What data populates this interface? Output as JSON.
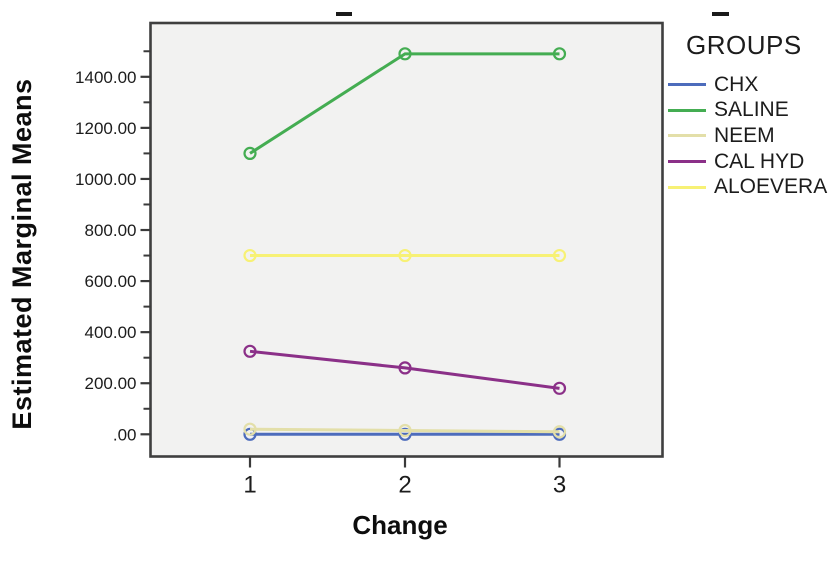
{
  "chart_data": {
    "type": "line",
    "title": "",
    "xlabel": "Change",
    "ylabel": "Estimated Marginal Means",
    "legend_title": "GROUPS",
    "legend_position": "right",
    "grid": false,
    "x": [
      1,
      2,
      3
    ],
    "x_tick_labels": [
      "1",
      "2",
      "3"
    ],
    "y_ticks": [
      ".00",
      "200.00",
      "400.00",
      "600.00",
      "800.00",
      "1000.00",
      "1200.00",
      "1400.00"
    ],
    "y_tick_values": [
      0,
      200,
      400,
      600,
      800,
      1000,
      1200,
      1400
    ],
    "y_minor_tick_values": [
      100,
      300,
      500,
      700,
      900,
      1100,
      1300,
      1500
    ],
    "ylim": [
      -90,
      1610
    ],
    "series": [
      {
        "name": "CHX",
        "color": "#4d6cbc",
        "values": [
          0,
          0,
          0
        ]
      },
      {
        "name": "SALINE",
        "color": "#44ad52",
        "values": [
          1100,
          1490,
          1490
        ]
      },
      {
        "name": "NEEM",
        "color": "#e3dfa9",
        "values": [
          20,
          15,
          10
        ]
      },
      {
        "name": "CAL HYD",
        "color": "#8b3088",
        "values": [
          325,
          260,
          180
        ]
      },
      {
        "name": "ALOEVERA",
        "color": "#f7f175",
        "values": [
          700,
          700,
          700
        ]
      }
    ]
  },
  "colors": {
    "plot_background": "#f2f2f1",
    "frame_border": "#3f3f3f",
    "tick": "#3a3a3a",
    "tick_text": "#1c1c1c"
  },
  "cropped_title_fragments": [
    "-",
    "-"
  ]
}
